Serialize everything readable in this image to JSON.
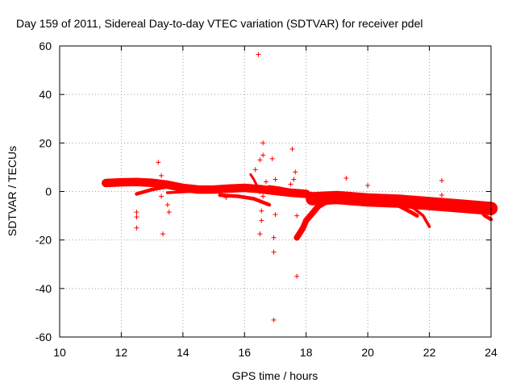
{
  "chart_data": {
    "type": "scatter",
    "title": "Day 159 of 2011, Sidereal Day-to-day VTEC variation (SDTVAR) for receiver pdel",
    "xlabel": "GPS time / hours",
    "ylabel": "SDTVAR / TECUs",
    "xlim": [
      10,
      24
    ],
    "ylim": [
      -60,
      60
    ],
    "xticks": [
      10,
      12,
      14,
      16,
      18,
      20,
      22,
      24
    ],
    "yticks": [
      -60,
      -40,
      -20,
      0,
      20,
      40,
      60
    ],
    "grid": true,
    "marker": "+",
    "series_color": "#ff0000",
    "dense_traces": [
      {
        "name": "main-band",
        "x": [
          11.5,
          12.0,
          12.5,
          13.0,
          13.5,
          14.0,
          14.5,
          15.0,
          15.5,
          16.0,
          16.5,
          17.0,
          17.5,
          18.0
        ],
        "y": [
          3.5,
          3.8,
          3.9,
          3.6,
          2.8,
          1.5,
          0.8,
          0.8,
          1.2,
          1.5,
          1.0,
          0.2,
          -0.5,
          -1.0
        ],
        "thickness": 3.5
      },
      {
        "name": "lower-branch-1",
        "x": [
          12.5,
          13.0,
          13.5,
          14.0
        ],
        "y": [
          -1.0,
          0.8,
          2.0,
          2.2
        ],
        "thickness": 1.5
      },
      {
        "name": "lower-branch-2",
        "x": [
          13.5,
          14.5,
          15.5,
          16.5
        ],
        "y": [
          -0.5,
          0.2,
          1.0,
          0.0
        ],
        "thickness": 1.2
      },
      {
        "name": "branch-to-16.8",
        "x": [
          15.2,
          15.8,
          16.3,
          16.8
        ],
        "y": [
          -1.5,
          -2.0,
          -3.0,
          -5.5
        ],
        "thickness": 1.5
      },
      {
        "name": "drop-near-16.5",
        "x": [
          16.2,
          16.3,
          16.4,
          16.5
        ],
        "y": [
          7.0,
          5.0,
          2.5,
          -0.5
        ],
        "thickness": 1.0
      },
      {
        "name": "upper-branch-17",
        "x": [
          16.8,
          17.1,
          17.5,
          18.0,
          18.5
        ],
        "y": [
          2.0,
          1.5,
          0.5,
          -0.5,
          -1.5
        ],
        "thickness": 1.3
      },
      {
        "name": "dip-at-17.8",
        "x": [
          17.7,
          17.8,
          17.9,
          18.0,
          18.2,
          18.4,
          18.6,
          18.8
        ],
        "y": [
          -19.0,
          -17.0,
          -15.0,
          -12.0,
          -9.0,
          -6.0,
          -4.5,
          -4.0
        ],
        "thickness": 2.5
      },
      {
        "name": "after-18-band",
        "x": [
          18.2,
          19.0,
          20.0,
          21.0,
          22.0,
          23.0,
          24.0
        ],
        "y": [
          -3.0,
          -2.5,
          -3.5,
          -4.0,
          -5.0,
          -6.0,
          -7.0
        ],
        "thickness": 5.5
      },
      {
        "name": "branch-20.8-21.5",
        "x": [
          20.8,
          21.1,
          21.4,
          21.6
        ],
        "y": [
          -4.5,
          -6.5,
          -8.5,
          -10.0
        ],
        "thickness": 1.6
      },
      {
        "name": "branch-21.2-22",
        "x": [
          21.2,
          21.5,
          21.8,
          22.0
        ],
        "y": [
          -5.0,
          -7.0,
          -10.0,
          -14.5
        ],
        "thickness": 1.2
      },
      {
        "name": "end-drop",
        "x": [
          23.6,
          23.8,
          24.0
        ],
        "y": [
          -7.0,
          -10.0,
          -11.5
        ],
        "thickness": 1.5
      }
    ],
    "outliers": [
      {
        "x": 12.5,
        "y": -8.5
      },
      {
        "x": 12.5,
        "y": -10.5
      },
      {
        "x": 12.5,
        "y": -15.0
      },
      {
        "x": 13.2,
        "y": 12.0
      },
      {
        "x": 13.3,
        "y": 6.5
      },
      {
        "x": 13.3,
        "y": -2.0
      },
      {
        "x": 13.35,
        "y": -17.5
      },
      {
        "x": 13.5,
        "y": -5.5
      },
      {
        "x": 13.55,
        "y": -8.5
      },
      {
        "x": 15.4,
        "y": -2.5
      },
      {
        "x": 16.45,
        "y": 56.5
      },
      {
        "x": 16.35,
        "y": 9.0
      },
      {
        "x": 16.5,
        "y": 13.0
      },
      {
        "x": 16.6,
        "y": 20.0
      },
      {
        "x": 16.6,
        "y": 15.0
      },
      {
        "x": 16.55,
        "y": -8.0
      },
      {
        "x": 16.55,
        "y": -12.0
      },
      {
        "x": 16.5,
        "y": -17.5
      },
      {
        "x": 16.6,
        "y": -2.0
      },
      {
        "x": 16.7,
        "y": 4.0
      },
      {
        "x": 16.9,
        "y": 13.5
      },
      {
        "x": 17.0,
        "y": 5.0
      },
      {
        "x": 16.95,
        "y": -19.0
      },
      {
        "x": 16.95,
        "y": -25.0
      },
      {
        "x": 17.0,
        "y": -9.5
      },
      {
        "x": 16.95,
        "y": -53.0
      },
      {
        "x": 17.5,
        "y": 3.0
      },
      {
        "x": 17.55,
        "y": 17.5
      },
      {
        "x": 17.6,
        "y": 5.0
      },
      {
        "x": 17.65,
        "y": 8.0
      },
      {
        "x": 17.7,
        "y": -10.0
      },
      {
        "x": 17.7,
        "y": -35.0
      },
      {
        "x": 19.3,
        "y": 5.5
      },
      {
        "x": 19.3,
        "y": -3.0
      },
      {
        "x": 20.0,
        "y": 2.5
      },
      {
        "x": 22.4,
        "y": 4.5
      },
      {
        "x": 22.4,
        "y": -1.5
      }
    ]
  }
}
